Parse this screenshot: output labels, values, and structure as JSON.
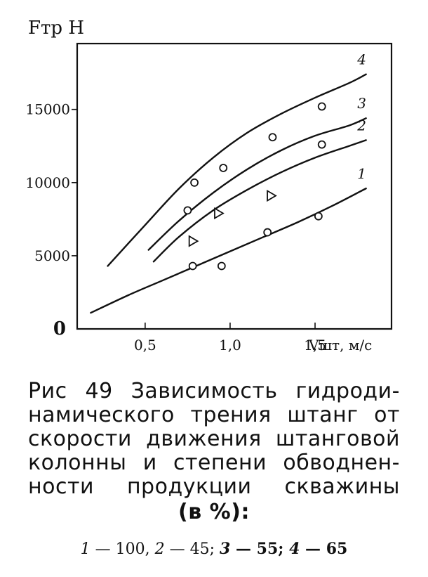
{
  "chart_data": {
    "type": "line",
    "ylabel": "Fтр Н",
    "xlabel": "Vшт, м/с",
    "xlim": [
      0.1,
      1.95
    ],
    "ylim": [
      0,
      19500
    ],
    "x_ticks": [
      0.5,
      1.0,
      1.5
    ],
    "x_tick_labels": [
      "0,5",
      "1,0",
      "1,5"
    ],
    "y_ticks": [
      5000,
      10000,
      15000
    ],
    "y_tick_labels": [
      "5000",
      "10000",
      "15000"
    ],
    "origin_label": "0",
    "grid": false,
    "legend": "curve-end-labels",
    "series": [
      {
        "name": "1",
        "x": [
          0.18,
          0.4,
          0.6,
          0.8,
          1.0,
          1.2,
          1.4,
          1.6,
          1.8
        ],
        "y": [
          1100,
          2300,
          3300,
          4300,
          5300,
          6300,
          7300,
          8400,
          9600
        ]
      },
      {
        "name": "2",
        "x": [
          0.55,
          0.7,
          0.9,
          1.1,
          1.3,
          1.5,
          1.7,
          1.8
        ],
        "y": [
          4600,
          6300,
          8100,
          9500,
          10700,
          11700,
          12500,
          12900
        ]
      },
      {
        "name": "3",
        "x": [
          0.52,
          0.7,
          0.9,
          1.1,
          1.3,
          1.5,
          1.7,
          1.8
        ],
        "y": [
          5400,
          7400,
          9300,
          10900,
          12200,
          13200,
          13900,
          14400
        ]
      },
      {
        "name": "4",
        "x": [
          0.28,
          0.5,
          0.7,
          0.9,
          1.1,
          1.3,
          1.5,
          1.7,
          1.8
        ],
        "y": [
          4300,
          7100,
          9600,
          11700,
          13400,
          14700,
          15800,
          16800,
          17400
        ]
      }
    ],
    "markers": [
      {
        "shape": "circle",
        "x": 0.78,
        "y": 4300
      },
      {
        "shape": "circle",
        "x": 0.95,
        "y": 4300
      },
      {
        "shape": "circle",
        "x": 1.22,
        "y": 6600
      },
      {
        "shape": "circle",
        "x": 1.52,
        "y": 7700
      },
      {
        "shape": "circle",
        "x": 0.75,
        "y": 8100
      },
      {
        "shape": "circle",
        "x": 0.79,
        "y": 10000
      },
      {
        "shape": "circle",
        "x": 0.96,
        "y": 11000
      },
      {
        "shape": "circle",
        "x": 1.25,
        "y": 13100
      },
      {
        "shape": "circle",
        "x": 1.54,
        "y": 12600
      },
      {
        "shape": "circle",
        "x": 1.54,
        "y": 15200
      },
      {
        "shape": "triangle",
        "x": 0.78,
        "y": 6000
      },
      {
        "shape": "triangle",
        "x": 0.93,
        "y": 7900
      },
      {
        "shape": "triangle",
        "x": 1.24,
        "y": 9100
      }
    ]
  },
  "caption": {
    "lines": [
      "Рис  49  Зависимость  гидроди-",
      "намического  трения  штанг  от",
      "скорости  движения  штанговой",
      "колонны  и  степени  обводнен-",
      "ности  продукции  скважины"
    ],
    "last_line": "(в  %):",
    "legend": {
      "i1": "1",
      "t1": " — 100,  ",
      "i2": "2",
      "t2": " — 45;  ",
      "i3": "3",
      "t3": " — 55;  ",
      "i4": "4",
      "t4": " — 65"
    }
  },
  "colors": {
    "ink": "#111111",
    "background": "#ffffff"
  }
}
